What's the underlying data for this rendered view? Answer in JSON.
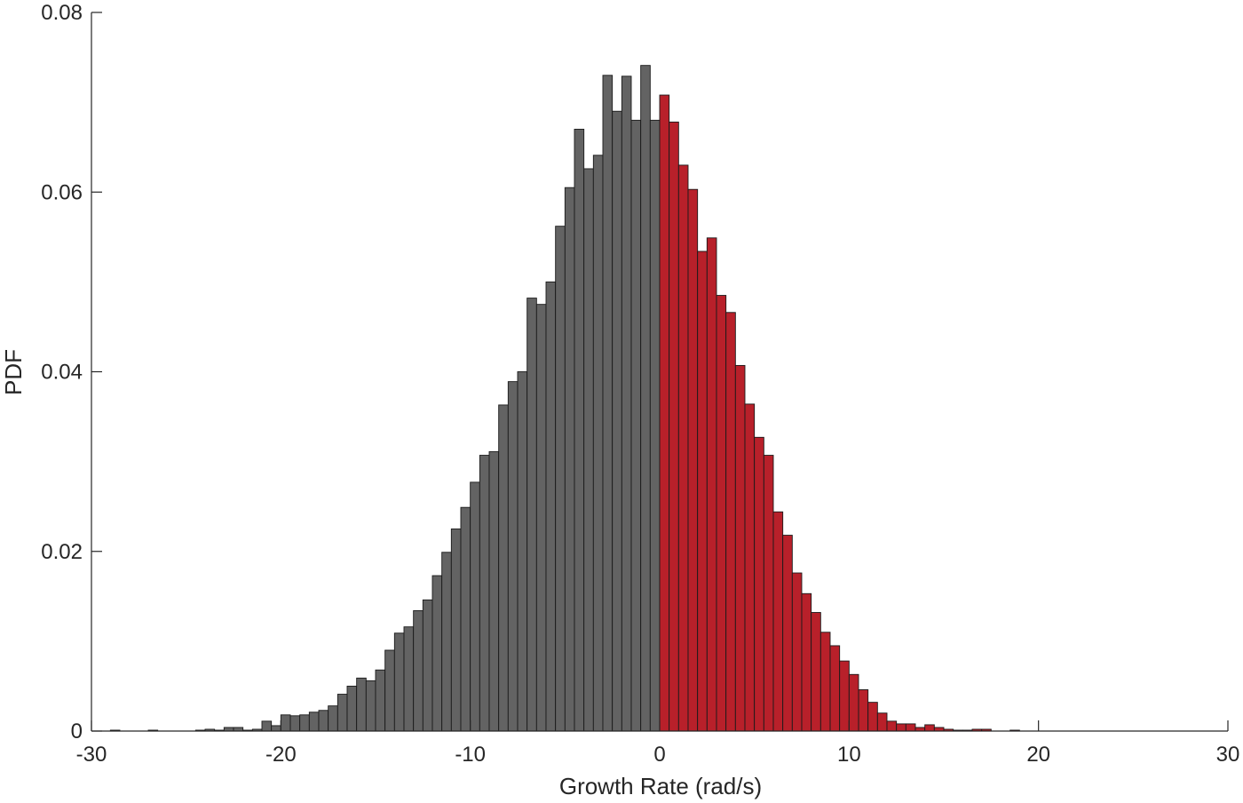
{
  "chart_data": {
    "type": "bar",
    "subtype": "histogram",
    "xlabel": "Growth Rate (rad/s)",
    "ylabel": "PDF",
    "xlim": [
      -30,
      30
    ],
    "ylim": [
      0,
      0.08
    ],
    "x_ticks": [
      "-30",
      "-20",
      "-10",
      "0",
      "10",
      "20",
      "30"
    ],
    "y_ticks": [
      "0",
      "0.02",
      "0.04",
      "0.06",
      "0.08"
    ],
    "grid": false,
    "bin_width": 0.5,
    "bin_start": -29,
    "colors": {
      "negative": "#636363",
      "positive": "#b8202a",
      "edge": "#1a1a1a",
      "axis": "#262626"
    },
    "series": [
      {
        "values": [
          0.0001,
          0.0,
          0.0,
          0.0,
          0.0001,
          0.0,
          0.0,
          0.0,
          0.0,
          0.0001,
          0.0002,
          0.0001,
          0.0004,
          0.0004,
          0.0001,
          0.0002,
          0.0011,
          0.0006,
          0.0018,
          0.0017,
          0.0018,
          0.0021,
          0.0023,
          0.0028,
          0.0041,
          0.005,
          0.0059,
          0.0056,
          0.0068,
          0.009,
          0.0109,
          0.0116,
          0.0134,
          0.0146,
          0.0173,
          0.0199,
          0.0225,
          0.0249,
          0.0277,
          0.0307,
          0.0311,
          0.0363,
          0.0389,
          0.04,
          0.0482,
          0.0475,
          0.05,
          0.0562,
          0.0605,
          0.067,
          0.0626,
          0.0641,
          0.073,
          0.069,
          0.0729,
          0.068,
          0.0741,
          0.068,
          0.0708,
          0.0678,
          0.063,
          0.0603,
          0.0534,
          0.0549,
          0.0485,
          0.0466,
          0.0407,
          0.0364,
          0.0327,
          0.0307,
          0.0244,
          0.0218,
          0.0176,
          0.0153,
          0.0132,
          0.011,
          0.0095,
          0.0078,
          0.0063,
          0.0046,
          0.0032,
          0.002,
          0.0011,
          0.0008,
          0.0008,
          0.0004,
          0.0007,
          0.0004,
          0.0002,
          0.0001,
          0.0001,
          0.0002,
          0.0002,
          0.0,
          0.0,
          0.0001,
          0.0,
          0.0,
          0.0,
          0.0,
          0.0,
          0.0,
          0.0,
          0.0
        ]
      }
    ]
  }
}
